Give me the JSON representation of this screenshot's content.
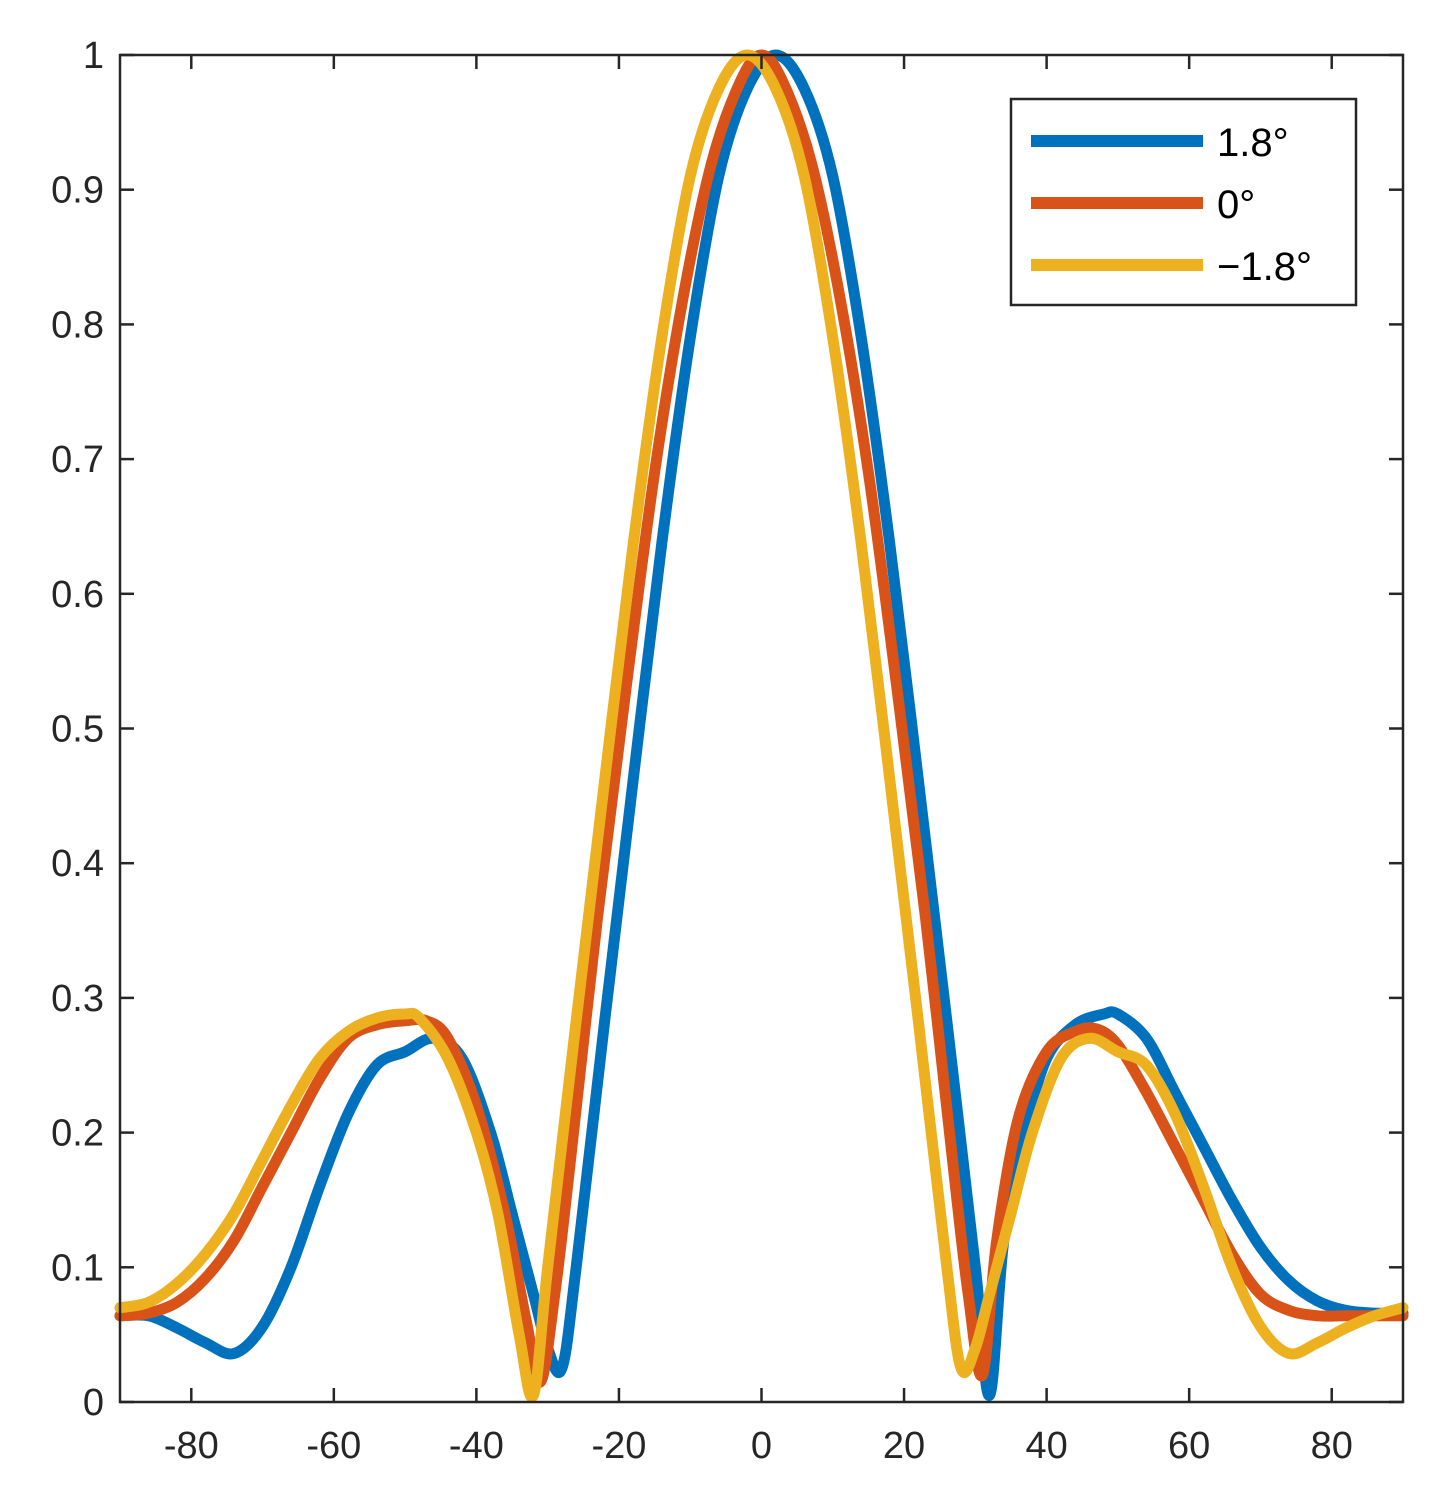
{
  "chart_data": {
    "type": "line",
    "title": "",
    "xlabel": "",
    "ylabel": "",
    "xlim": [
      -90,
      90
    ],
    "ylim": [
      0,
      1
    ],
    "xticks": [
      -80,
      -60,
      -40,
      -20,
      0,
      20,
      40,
      60,
      80
    ],
    "yticks": [
      0,
      0.1,
      0.2,
      0.3,
      0.4,
      0.5,
      0.6,
      0.7,
      0.8,
      0.9,
      1
    ],
    "grid": false,
    "legend_position": "top-right",
    "series": [
      {
        "name": "1.8°",
        "color": "#0072BD",
        "x": [
          -90,
          -86,
          -82,
          -78,
          -74,
          -70,
          -66,
          -62,
          -58,
          -54,
          -50,
          -46,
          -42,
          -38,
          -35,
          -32,
          -30,
          -28,
          -26,
          -22,
          -18,
          -14,
          -10,
          -6,
          -2,
          2,
          6,
          10,
          14,
          18,
          22,
          26,
          30,
          32,
          34,
          37,
          40,
          44,
          48,
          50,
          54,
          58,
          62,
          66,
          70,
          74,
          78,
          82,
          86,
          90
        ],
        "y": [
          0.064,
          0.064,
          0.055,
          0.044,
          0.036,
          0.056,
          0.1,
          0.16,
          0.214,
          0.25,
          0.26,
          0.27,
          0.255,
          0.2,
          0.14,
          0.08,
          0.04,
          0.025,
          0.1,
          0.283,
          0.462,
          0.637,
          0.79,
          0.91,
          0.975,
          1.0,
          0.975,
          0.91,
          0.79,
          0.637,
          0.462,
          0.283,
          0.1,
          0.005,
          0.12,
          0.2,
          0.255,
          0.28,
          0.288,
          0.288,
          0.27,
          0.23,
          0.19,
          0.15,
          0.115,
          0.09,
          0.075,
          0.068,
          0.066,
          0.066
        ]
      },
      {
        "name": "0°",
        "color": "#D95319",
        "x": [
          -90,
          -86,
          -82,
          -78,
          -74,
          -70,
          -66,
          -62,
          -58,
          -54,
          -50,
          -47,
          -44,
          -40,
          -36,
          -33,
          -31,
          -29,
          -27,
          -23,
          -19,
          -15,
          -11,
          -7,
          -3,
          0,
          3,
          7,
          11,
          15,
          19,
          23,
          27,
          29,
          31,
          33,
          36,
          40,
          44,
          47,
          50,
          54,
          58,
          62,
          66,
          70,
          74,
          78,
          82,
          86,
          90
        ],
        "y": [
          0.064,
          0.066,
          0.074,
          0.092,
          0.12,
          0.16,
          0.2,
          0.24,
          0.27,
          0.28,
          0.283,
          0.283,
          0.27,
          0.22,
          0.14,
          0.06,
          0.015,
          0.08,
          0.17,
          0.36,
          0.53,
          0.69,
          0.82,
          0.92,
          0.98,
          1.0,
          0.98,
          0.92,
          0.82,
          0.69,
          0.53,
          0.36,
          0.17,
          0.08,
          0.02,
          0.12,
          0.21,
          0.26,
          0.275,
          0.277,
          0.265,
          0.23,
          0.19,
          0.15,
          0.11,
          0.08,
          0.068,
          0.064,
          0.064,
          0.064,
          0.064
        ]
      },
      {
        "name": "−1.8°",
        "color": "#EDB120",
        "x": [
          -90,
          -86,
          -82,
          -78,
          -74,
          -70,
          -66,
          -62,
          -58,
          -54,
          -50,
          -48,
          -44,
          -40,
          -37,
          -34,
          -32,
          -30,
          -26,
          -22,
          -18,
          -14,
          -10,
          -6,
          -2,
          2,
          6,
          10,
          14,
          18,
          22,
          26,
          28,
          30,
          32,
          35,
          38,
          42,
          46,
          50,
          54,
          58,
          62,
          66,
          70,
          74,
          78,
          82,
          86,
          90
        ],
        "y": [
          0.07,
          0.074,
          0.088,
          0.11,
          0.14,
          0.18,
          0.22,
          0.255,
          0.275,
          0.285,
          0.288,
          0.285,
          0.255,
          0.2,
          0.14,
          0.05,
          0.005,
          0.1,
          0.283,
          0.462,
          0.637,
          0.79,
          0.91,
          0.975,
          1.0,
          0.975,
          0.91,
          0.79,
          0.637,
          0.462,
          0.283,
          0.1,
          0.025,
          0.04,
          0.08,
          0.14,
          0.2,
          0.255,
          0.27,
          0.26,
          0.25,
          0.214,
          0.16,
          0.1,
          0.056,
          0.036,
          0.044,
          0.055,
          0.064,
          0.07
        ]
      }
    ]
  }
}
